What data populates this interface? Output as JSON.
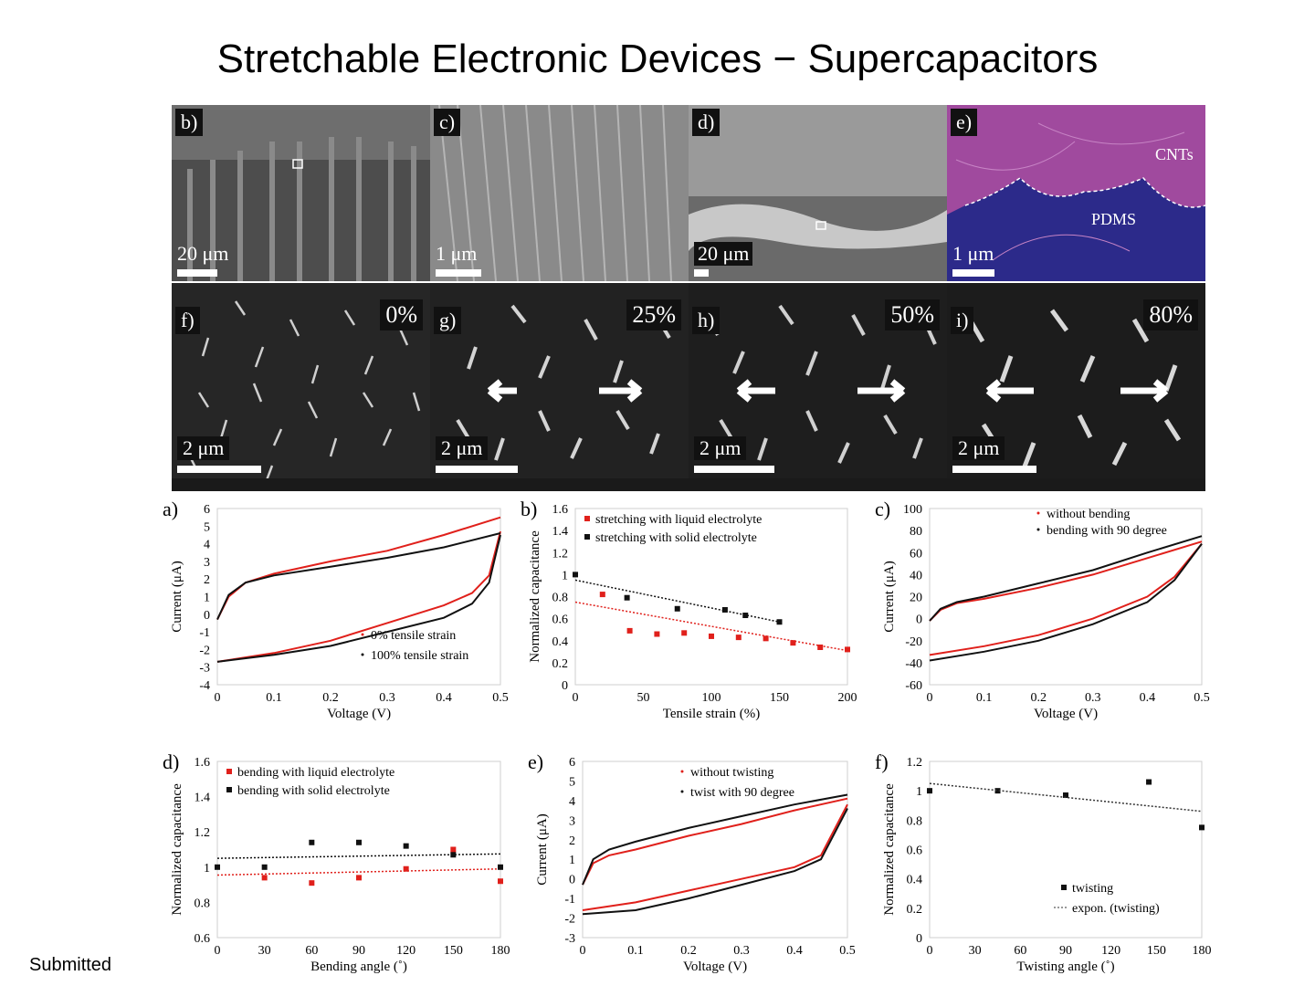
{
  "slide": {
    "title": "Stretchable Electronic Devices − Supercapacitors",
    "footer": "Submitted"
  },
  "sem": {
    "b": {
      "label": "b)",
      "scale": "20 μm"
    },
    "c": {
      "label": "c)",
      "scale": "1 μm"
    },
    "d": {
      "label": "d)",
      "scale": "20 μm"
    },
    "e": {
      "label": "e)",
      "scale": "1 μm",
      "cnt": "CNTs",
      "pdms": "PDMS"
    },
    "f": {
      "label": "f)",
      "scale": "2 μm",
      "strain": "0%"
    },
    "g": {
      "label": "g)",
      "scale": "2 μm",
      "strain": "25%"
    },
    "h": {
      "label": "h)",
      "scale": "2 μm",
      "strain": "50%"
    },
    "i": {
      "label": "i)",
      "scale": "2 μm",
      "strain": "80%"
    }
  },
  "chart_data": [
    {
      "id": "a",
      "panel": "a)",
      "type": "line",
      "xlabel": "Voltage (V)",
      "ylabel": "Current (μA)",
      "xlim": [
        0,
        0.5
      ],
      "ylim": [
        -4,
        6
      ],
      "xticks": [
        "0",
        "0.1",
        "0.2",
        "0.3",
        "0.4",
        "0.5"
      ],
      "yticks": [
        "-4",
        "-3",
        "-2",
        "-1",
        "0",
        "1",
        "2",
        "3",
        "4",
        "5",
        "6"
      ],
      "legend_position": "bottom-right",
      "series": [
        {
          "name": "0% tensile strain",
          "color": "#e0201b",
          "upper": [
            [
              0,
              -0.3
            ],
            [
              0.02,
              1
            ],
            [
              0.05,
              1.8
            ],
            [
              0.1,
              2.3
            ],
            [
              0.2,
              3
            ],
            [
              0.3,
              3.6
            ],
            [
              0.4,
              4.5
            ],
            [
              0.5,
              5.5
            ]
          ],
          "lower": [
            [
              0,
              -2.7
            ],
            [
              0.1,
              -2.2
            ],
            [
              0.2,
              -1.5
            ],
            [
              0.3,
              -0.5
            ],
            [
              0.4,
              0.5
            ],
            [
              0.45,
              1.2
            ],
            [
              0.48,
              2.2
            ],
            [
              0.5,
              4.7
            ]
          ]
        },
        {
          "name": "100% tensile strain",
          "color": "#111111",
          "upper": [
            [
              0,
              -0.3
            ],
            [
              0.02,
              1.1
            ],
            [
              0.05,
              1.8
            ],
            [
              0.1,
              2.2
            ],
            [
              0.2,
              2.7
            ],
            [
              0.3,
              3.2
            ],
            [
              0.4,
              3.8
            ],
            [
              0.5,
              4.6
            ]
          ],
          "lower": [
            [
              0,
              -2.7
            ],
            [
              0.1,
              -2.3
            ],
            [
              0.2,
              -1.8
            ],
            [
              0.3,
              -1
            ],
            [
              0.4,
              -0.2
            ],
            [
              0.45,
              0.6
            ],
            [
              0.48,
              1.8
            ],
            [
              0.5,
              4.5
            ]
          ]
        }
      ]
    },
    {
      "id": "b",
      "panel": "b)",
      "type": "scatter",
      "xlabel": "Tensile strain (%)",
      "ylabel": "Normalized capacitance",
      "xlim": [
        0,
        200
      ],
      "ylim": [
        0,
        1.6
      ],
      "xticks": [
        "0",
        "50",
        "100",
        "150",
        "200"
      ],
      "yticks": [
        "0",
        "0.2",
        "0.4",
        "0.6",
        "0.8",
        "1",
        "1.2",
        "1.4",
        "1.6"
      ],
      "legend_position": "top-left",
      "series": [
        {
          "name": "stretching with liquid electrolyte",
          "color": "#e0201b",
          "points": [
            [
              20,
              0.82
            ],
            [
              40,
              0.49
            ],
            [
              60,
              0.46
            ],
            [
              80,
              0.47
            ],
            [
              100,
              0.44
            ],
            [
              120,
              0.43
            ],
            [
              140,
              0.42
            ],
            [
              160,
              0.38
            ],
            [
              180,
              0.34
            ],
            [
              200,
              0.32
            ]
          ],
          "trend": [
            [
              0,
              0.75
            ],
            [
              200,
              0.31
            ]
          ]
        },
        {
          "name": "stretching with solid electrolyte",
          "color": "#111111",
          "points": [
            [
              0,
              1
            ],
            [
              38,
              0.79
            ],
            [
              75,
              0.69
            ],
            [
              110,
              0.68
            ],
            [
              125,
              0.63
            ],
            [
              150,
              0.57
            ]
          ],
          "trend": [
            [
              0,
              0.95
            ],
            [
              150,
              0.57
            ]
          ]
        }
      ]
    },
    {
      "id": "c",
      "panel": "c)",
      "type": "line",
      "xlabel": "Voltage (V)",
      "ylabel": "Current (μA)",
      "xlim": [
        0,
        0.5
      ],
      "ylim": [
        -60,
        100
      ],
      "xticks": [
        "0",
        "0.1",
        "0.2",
        "0.3",
        "0.4",
        "0.5"
      ],
      "yticks": [
        "-60",
        "-40",
        "-20",
        "0",
        "20",
        "40",
        "60",
        "80",
        "100"
      ],
      "legend_position": "top",
      "series": [
        {
          "name": "without bending",
          "color": "#e0201b",
          "upper": [
            [
              0,
              -2
            ],
            [
              0.02,
              8
            ],
            [
              0.05,
              14
            ],
            [
              0.1,
              18
            ],
            [
              0.2,
              28
            ],
            [
              0.3,
              40
            ],
            [
              0.4,
              55
            ],
            [
              0.5,
              70
            ]
          ],
          "lower": [
            [
              0,
              -33
            ],
            [
              0.1,
              -25
            ],
            [
              0.2,
              -15
            ],
            [
              0.3,
              0
            ],
            [
              0.4,
              20
            ],
            [
              0.45,
              38
            ],
            [
              0.5,
              68
            ]
          ]
        },
        {
          "name": "bending with 90 degree",
          "color": "#111111",
          "upper": [
            [
              0,
              -2
            ],
            [
              0.02,
              9
            ],
            [
              0.05,
              15
            ],
            [
              0.1,
              20
            ],
            [
              0.2,
              32
            ],
            [
              0.3,
              44
            ],
            [
              0.4,
              60
            ],
            [
              0.5,
              75
            ]
          ],
          "lower": [
            [
              0,
              -38
            ],
            [
              0.1,
              -30
            ],
            [
              0.2,
              -20
            ],
            [
              0.3,
              -5
            ],
            [
              0.4,
              15
            ],
            [
              0.45,
              35
            ],
            [
              0.5,
              68
            ]
          ]
        }
      ]
    },
    {
      "id": "d",
      "panel": "d)",
      "type": "scatter",
      "xlabel": "Bending angle (˚)",
      "ylabel": "Normalized capacitance",
      "xlim": [
        0,
        180
      ],
      "ylim": [
        0.6,
        1.6
      ],
      "xticks": [
        "0",
        "30",
        "60",
        "90",
        "120",
        "150",
        "180"
      ],
      "yticks": [
        "0.6",
        "0.8",
        "1",
        "1.2",
        "1.4",
        "1.6"
      ],
      "legend_position": "top-left",
      "series": [
        {
          "name": "bending with liquid electrolyte",
          "color": "#e0201b",
          "points": [
            [
              30,
              0.94
            ],
            [
              60,
              0.91
            ],
            [
              90,
              0.94
            ],
            [
              120,
              0.99
            ],
            [
              150,
              1.1
            ],
            [
              180,
              0.92
            ]
          ],
          "trend": [
            [
              0,
              0.955
            ],
            [
              180,
              0.99
            ]
          ]
        },
        {
          "name": "bending with solid electrolyte",
          "color": "#111111",
          "points": [
            [
              0,
              1
            ],
            [
              30,
              1
            ],
            [
              60,
              1.14
            ],
            [
              90,
              1.14
            ],
            [
              120,
              1.12
            ],
            [
              150,
              1.07
            ],
            [
              180,
              1
            ]
          ],
          "trend": [
            [
              0,
              1.05
            ],
            [
              180,
              1.075
            ]
          ]
        }
      ]
    },
    {
      "id": "e",
      "panel": "e)",
      "type": "line",
      "xlabel": "Voltage (V)",
      "ylabel": "Current (μA)",
      "xlim": [
        0,
        0.5
      ],
      "ylim": [
        -3,
        6
      ],
      "xticks": [
        "0",
        "0.1",
        "0.2",
        "0.3",
        "0.4",
        "0.5"
      ],
      "yticks": [
        "-3",
        "-2",
        "-1",
        "0",
        "1",
        "2",
        "3",
        "4",
        "5",
        "6"
      ],
      "legend_position": "top-right",
      "series": [
        {
          "name": "without twisting",
          "color": "#e0201b",
          "upper": [
            [
              0,
              -0.3
            ],
            [
              0.02,
              0.8
            ],
            [
              0.05,
              1.2
            ],
            [
              0.1,
              1.5
            ],
            [
              0.2,
              2.2
            ],
            [
              0.3,
              2.8
            ],
            [
              0.4,
              3.5
            ],
            [
              0.5,
              4.1
            ]
          ],
          "lower": [
            [
              0,
              -1.6
            ],
            [
              0.1,
              -1.2
            ],
            [
              0.2,
              -0.6
            ],
            [
              0.3,
              0
            ],
            [
              0.4,
              0.6
            ],
            [
              0.45,
              1.2
            ],
            [
              0.5,
              3.8
            ]
          ]
        },
        {
          "name": "twist with 90 degree",
          "color": "#111111",
          "upper": [
            [
              0,
              -0.3
            ],
            [
              0.02,
              1
            ],
            [
              0.05,
              1.5
            ],
            [
              0.1,
              1.9
            ],
            [
              0.2,
              2.6
            ],
            [
              0.3,
              3.2
            ],
            [
              0.4,
              3.8
            ],
            [
              0.5,
              4.3
            ]
          ],
          "lower": [
            [
              0,
              -1.8
            ],
            [
              0.1,
              -1.6
            ],
            [
              0.2,
              -1
            ],
            [
              0.3,
              -0.3
            ],
            [
              0.4,
              0.4
            ],
            [
              0.45,
              1
            ],
            [
              0.5,
              3.6
            ]
          ]
        }
      ]
    },
    {
      "id": "f",
      "panel": "f)",
      "type": "scatter",
      "xlabel": "Twisting angle (˚)",
      "ylabel": "Normalized capacitance",
      "xlim": [
        0,
        180
      ],
      "ylim": [
        0,
        1.2
      ],
      "xticks": [
        "0",
        "30",
        "60",
        "90",
        "120",
        "150",
        "180"
      ],
      "yticks": [
        "0",
        "0.2",
        "0.4",
        "0.6",
        "0.8",
        "1",
        "1.2"
      ],
      "legend_position": "bottom-right",
      "series": [
        {
          "name": "twisting",
          "color": "#111111",
          "points": [
            [
              0,
              1
            ],
            [
              45,
              1
            ],
            [
              90,
              0.97
            ],
            [
              145,
              1.06
            ],
            [
              180,
              0.75
            ]
          ]
        },
        {
          "name": "expon. (twisting)",
          "color": "#333333",
          "dashed": true,
          "trend": [
            [
              0,
              1.05
            ],
            [
              180,
              0.86
            ]
          ]
        }
      ]
    }
  ]
}
